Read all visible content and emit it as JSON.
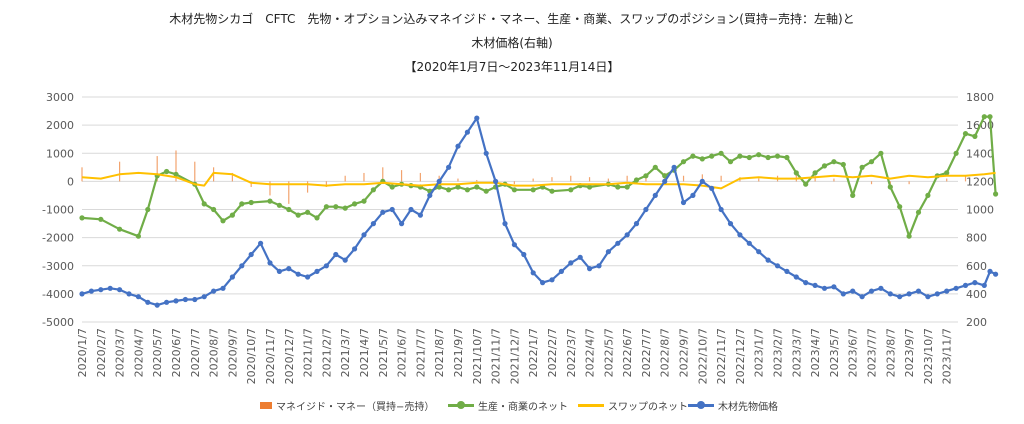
{
  "chart_data": {
    "type": "line",
    "title_lines": [
      "木材先物シカゴ　CFTC　先物・オプション込みマネイジド・マネー、生産・商業、スワップのポジション(買持−売持：左軸)と",
      "木材価格(右軸)",
      "【2020年1月7日～2023年11月14日】"
    ],
    "x_tick_labels": [
      "2020/1/7",
      "2020/2/7",
      "2020/3/7",
      "2020/4/7",
      "2020/5/7",
      "2020/6/7",
      "2020/7/7",
      "2020/8/7",
      "2020/9/7",
      "2020/10/7",
      "2020/11/7",
      "2020/12/7",
      "2021/1/7",
      "2021/2/7",
      "2021/3/7",
      "2021/4/7",
      "2021/5/7",
      "2021/6/7",
      "2021/7/7",
      "2021/8/7",
      "2021/9/7",
      "2021/10/7",
      "2021/11/7",
      "2021/12/7",
      "2022/1/7",
      "2022/2/7",
      "2022/3/7",
      "2022/4/7",
      "2022/5/7",
      "2022/6/7",
      "2022/7/7",
      "2022/8/7",
      "2022/9/7",
      "2022/10/7",
      "2022/11/7",
      "2022/12/7",
      "2023/1/7",
      "2023/2/7",
      "2023/3/7",
      "2023/4/7",
      "2023/5/7",
      "2023/6/7",
      "2023/7/7",
      "2023/8/7",
      "2023/9/7",
      "2023/10/7",
      "2023/11/7"
    ],
    "y_left": {
      "min": -5000,
      "max": 3000,
      "step": 1000,
      "ticks": [
        "3000",
        "2000",
        "1000",
        "0",
        "-1000",
        "-2000",
        "-3000",
        "-4000",
        "-5000"
      ]
    },
    "y_right": {
      "min": 200,
      "max": 1800,
      "step": 200,
      "ticks": [
        "1800",
        "1600",
        "1400",
        "1200",
        "1000",
        "800",
        "600",
        "400",
        "200"
      ]
    },
    "grid": "horizontal",
    "legend_position": "bottom",
    "series": [
      {
        "name": "マネイジド・マネー（買持−売持）",
        "kind": "bar",
        "axis": "left",
        "color": "#ed7d31",
        "points": [
          [
            0,
            500
          ],
          [
            2,
            700
          ],
          [
            4,
            900
          ],
          [
            5,
            1100
          ],
          [
            6,
            700
          ],
          [
            7,
            500
          ],
          [
            8,
            300
          ],
          [
            9,
            -200
          ],
          [
            10,
            -500
          ],
          [
            11,
            -800
          ],
          [
            12,
            -400
          ],
          [
            13,
            -200
          ],
          [
            14,
            200
          ],
          [
            15,
            300
          ],
          [
            16,
            500
          ],
          [
            17,
            400
          ],
          [
            18,
            300
          ],
          [
            19,
            200
          ],
          [
            20,
            100
          ],
          [
            21,
            50
          ],
          [
            22,
            0
          ],
          [
            23,
            -100
          ],
          [
            24,
            100
          ],
          [
            25,
            150
          ],
          [
            26,
            200
          ],
          [
            27,
            150
          ],
          [
            28,
            100
          ],
          [
            29,
            200
          ],
          [
            30,
            250
          ],
          [
            31,
            300
          ],
          [
            32,
            200
          ],
          [
            33,
            250
          ],
          [
            34,
            200
          ],
          [
            35,
            150
          ],
          [
            36,
            100
          ],
          [
            37,
            200
          ],
          [
            38,
            300
          ],
          [
            39,
            200
          ],
          [
            40,
            100
          ],
          [
            41,
            0
          ],
          [
            42,
            -100
          ],
          [
            43,
            -200
          ],
          [
            44,
            -100
          ],
          [
            45,
            0
          ],
          [
            46,
            100
          ],
          [
            47,
            200
          ]
        ]
      },
      {
        "name": "生産・商業のネット",
        "kind": "line",
        "axis": "left",
        "color": "#70ad47",
        "points": [
          [
            0,
            -1300
          ],
          [
            1,
            -1350
          ],
          [
            2,
            -1700
          ],
          [
            3,
            -1950
          ],
          [
            3.5,
            -1000
          ],
          [
            4,
            200
          ],
          [
            4.5,
            350
          ],
          [
            5,
            250
          ],
          [
            6,
            -100
          ],
          [
            6.5,
            -800
          ],
          [
            7,
            -1000
          ],
          [
            7.5,
            -1400
          ],
          [
            8,
            -1200
          ],
          [
            8.5,
            -800
          ],
          [
            9,
            -750
          ],
          [
            10,
            -700
          ],
          [
            10.5,
            -850
          ],
          [
            11,
            -1000
          ],
          [
            11.5,
            -1200
          ],
          [
            12,
            -1100
          ],
          [
            12.5,
            -1300
          ],
          [
            13,
            -900
          ],
          [
            13.5,
            -900
          ],
          [
            14,
            -950
          ],
          [
            14.5,
            -800
          ],
          [
            15,
            -700
          ],
          [
            15.5,
            -300
          ],
          [
            16,
            0
          ],
          [
            16.5,
            -200
          ],
          [
            17,
            -100
          ],
          [
            17.5,
            -150
          ],
          [
            18,
            -200
          ],
          [
            18.5,
            -350
          ],
          [
            19,
            -200
          ],
          [
            19.5,
            -300
          ],
          [
            20,
            -200
          ],
          [
            20.5,
            -300
          ],
          [
            21,
            -200
          ],
          [
            21.5,
            -350
          ],
          [
            22,
            -200
          ],
          [
            22.5,
            -100
          ],
          [
            23,
            -300
          ],
          [
            24,
            -300
          ],
          [
            24.5,
            -200
          ],
          [
            25,
            -350
          ],
          [
            26,
            -300
          ],
          [
            26.5,
            -150
          ],
          [
            27,
            -200
          ],
          [
            28,
            -100
          ],
          [
            28.5,
            -200
          ],
          [
            29,
            -200
          ],
          [
            29.5,
            50
          ],
          [
            30,
            200
          ],
          [
            30.5,
            500
          ],
          [
            31,
            200
          ],
          [
            31.5,
            400
          ],
          [
            32,
            700
          ],
          [
            32.5,
            900
          ],
          [
            33,
            800
          ],
          [
            33.5,
            900
          ],
          [
            34,
            1000
          ],
          [
            34.5,
            700
          ],
          [
            35,
            900
          ],
          [
            35.5,
            850
          ],
          [
            36,
            950
          ],
          [
            36.5,
            850
          ],
          [
            37,
            900
          ],
          [
            37.5,
            850
          ],
          [
            38,
            300
          ],
          [
            38.5,
            -100
          ],
          [
            39,
            300
          ],
          [
            39.5,
            550
          ],
          [
            40,
            700
          ],
          [
            40.5,
            600
          ],
          [
            41,
            -500
          ],
          [
            41.5,
            500
          ],
          [
            42,
            700
          ],
          [
            42.5,
            1000
          ],
          [
            43,
            -200
          ],
          [
            43.5,
            -900
          ],
          [
            44,
            -1950
          ],
          [
            44.5,
            -1100
          ],
          [
            45,
            -500
          ],
          [
            45.5,
            200
          ],
          [
            46,
            300
          ],
          [
            46.5,
            1000
          ],
          [
            47,
            1700
          ],
          [
            47.5,
            1600
          ],
          [
            48,
            2300
          ],
          [
            48.3,
            2300
          ],
          [
            48.6,
            -450
          ]
        ]
      },
      {
        "name": "スワップのネット",
        "kind": "line",
        "axis": "left",
        "color": "#ffc000",
        "points": [
          [
            0,
            150
          ],
          [
            1,
            100
          ],
          [
            2,
            250
          ],
          [
            3,
            300
          ],
          [
            4,
            250
          ],
          [
            5,
            150
          ],
          [
            6,
            -100
          ],
          [
            6.5,
            -150
          ],
          [
            7,
            300
          ],
          [
            8,
            250
          ],
          [
            9,
            -50
          ],
          [
            10,
            -100
          ],
          [
            11,
            -100
          ],
          [
            12,
            -100
          ],
          [
            13,
            -150
          ],
          [
            14,
            -100
          ],
          [
            15,
            -100
          ],
          [
            16,
            -50
          ],
          [
            17,
            -100
          ],
          [
            18,
            -150
          ],
          [
            19,
            -100
          ],
          [
            20,
            -100
          ],
          [
            21,
            -50
          ],
          [
            22,
            -50
          ],
          [
            23,
            -150
          ],
          [
            24,
            -150
          ],
          [
            25,
            -100
          ],
          [
            26,
            -100
          ],
          [
            27,
            -100
          ],
          [
            28,
            -100
          ],
          [
            29,
            -50
          ],
          [
            30,
            -100
          ],
          [
            31,
            -100
          ],
          [
            32,
            -100
          ],
          [
            33,
            -150
          ],
          [
            34,
            -250
          ],
          [
            35,
            100
          ],
          [
            36,
            150
          ],
          [
            37,
            100
          ],
          [
            38,
            100
          ],
          [
            39,
            150
          ],
          [
            40,
            200
          ],
          [
            41,
            150
          ],
          [
            42,
            200
          ],
          [
            43,
            100
          ],
          [
            44,
            200
          ],
          [
            45,
            150
          ],
          [
            46,
            200
          ],
          [
            47,
            200
          ],
          [
            48,
            250
          ],
          [
            48.6,
            300
          ]
        ]
      },
      {
        "name": "木材先物価格",
        "kind": "line",
        "axis": "right",
        "color": "#4472c4",
        "points": [
          [
            0,
            400
          ],
          [
            0.5,
            420
          ],
          [
            1,
            430
          ],
          [
            1.5,
            440
          ],
          [
            2,
            430
          ],
          [
            2.5,
            400
          ],
          [
            3,
            380
          ],
          [
            3.5,
            340
          ],
          [
            4,
            320
          ],
          [
            4.5,
            340
          ],
          [
            5,
            350
          ],
          [
            5.5,
            360
          ],
          [
            6,
            360
          ],
          [
            6.5,
            380
          ],
          [
            7,
            420
          ],
          [
            7.5,
            440
          ],
          [
            8,
            520
          ],
          [
            8.5,
            600
          ],
          [
            9,
            680
          ],
          [
            9.5,
            760
          ],
          [
            10,
            620
          ],
          [
            10.5,
            560
          ],
          [
            11,
            580
          ],
          [
            11.5,
            540
          ],
          [
            12,
            520
          ],
          [
            12.5,
            560
          ],
          [
            13,
            600
          ],
          [
            13.5,
            680
          ],
          [
            14,
            640
          ],
          [
            14.5,
            720
          ],
          [
            15,
            820
          ],
          [
            15.5,
            900
          ],
          [
            16,
            980
          ],
          [
            16.5,
            1000
          ],
          [
            17,
            900
          ],
          [
            17.5,
            1000
          ],
          [
            18,
            960
          ],
          [
            18.5,
            1100
          ],
          [
            19,
            1200
          ],
          [
            19.5,
            1300
          ],
          [
            20,
            1450
          ],
          [
            20.5,
            1550
          ],
          [
            21,
            1650
          ],
          [
            21.5,
            1400
          ],
          [
            22,
            1200
          ],
          [
            22.5,
            900
          ],
          [
            23,
            750
          ],
          [
            23.5,
            680
          ],
          [
            24,
            550
          ],
          [
            24.5,
            480
          ],
          [
            25,
            500
          ],
          [
            25.5,
            560
          ],
          [
            26,
            620
          ],
          [
            26.5,
            660
          ],
          [
            27,
            580
          ],
          [
            27.5,
            600
          ],
          [
            28,
            700
          ],
          [
            28.5,
            760
          ],
          [
            29,
            820
          ],
          [
            29.5,
            900
          ],
          [
            30,
            1000
          ],
          [
            30.5,
            1100
          ],
          [
            31,
            1200
          ],
          [
            31.5,
            1300
          ],
          [
            32,
            1050
          ],
          [
            32.5,
            1100
          ],
          [
            33,
            1200
          ],
          [
            33.5,
            1150
          ],
          [
            34,
            1000
          ],
          [
            34.5,
            900
          ],
          [
            35,
            820
          ],
          [
            35.5,
            760
          ],
          [
            36,
            700
          ],
          [
            36.5,
            640
          ],
          [
            37,
            600
          ],
          [
            37.5,
            560
          ],
          [
            38,
            520
          ],
          [
            38.5,
            480
          ],
          [
            39,
            460
          ],
          [
            39.5,
            440
          ],
          [
            40,
            450
          ],
          [
            40.5,
            400
          ],
          [
            41,
            420
          ],
          [
            41.5,
            380
          ],
          [
            42,
            420
          ],
          [
            42.5,
            440
          ],
          [
            43,
            400
          ],
          [
            43.5,
            380
          ],
          [
            44,
            400
          ],
          [
            44.5,
            420
          ],
          [
            45,
            380
          ],
          [
            45.5,
            400
          ],
          [
            46,
            420
          ],
          [
            46.5,
            440
          ],
          [
            47,
            460
          ],
          [
            47.5,
            480
          ],
          [
            48,
            460
          ],
          [
            48.3,
            560
          ],
          [
            48.6,
            540
          ]
        ]
      }
    ]
  }
}
